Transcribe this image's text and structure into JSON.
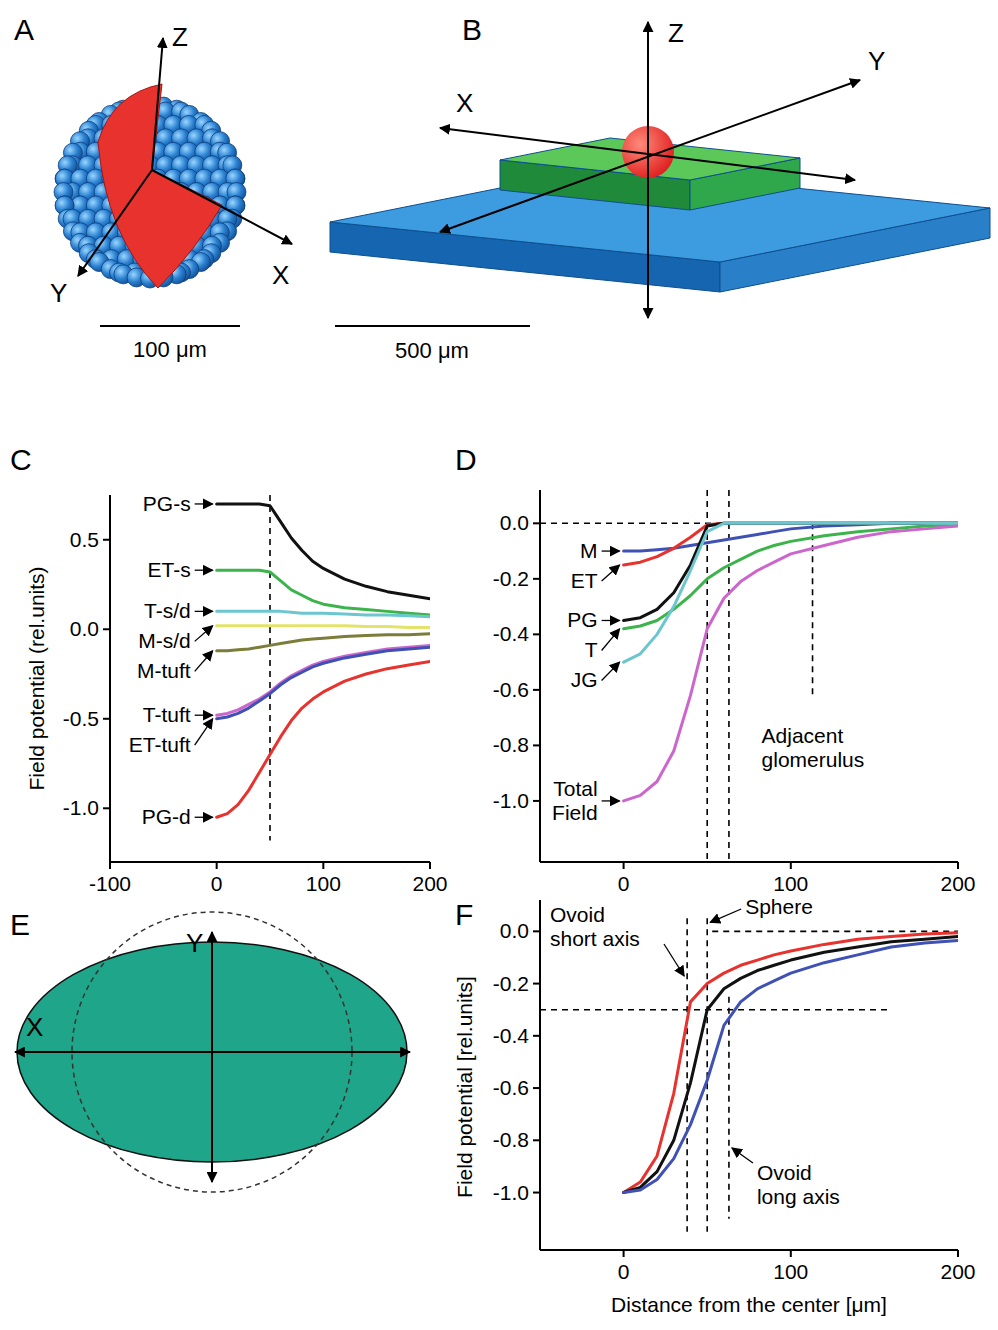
{
  "chart_data": [
    {
      "panel_label": "C",
      "type": "line",
      "y_label": "Field potential (rel.units)",
      "x": [
        0,
        10,
        20,
        30,
        40,
        50,
        60,
        70,
        80,
        90,
        100,
        120,
        140,
        160,
        180,
        200
      ],
      "xlim": [
        -100,
        200
      ],
      "xticks": [
        -100,
        0,
        100,
        200
      ],
      "ylim": [
        -1.3,
        0.75
      ],
      "yticks": [
        {
          "value": -1,
          "label": "-1.0"
        },
        -0.5,
        {
          "value": 0,
          "label": "0.0"
        },
        0.5
      ],
      "vlines": [
        {
          "x": 50,
          "y_from": -1.18,
          "y_to": 0.75
        }
      ],
      "series": [
        {
          "name": "PG-s",
          "color": "#111111",
          "values": [
            0.7,
            0.7,
            0.7,
            0.7,
            0.7,
            0.69,
            0.6,
            0.51,
            0.44,
            0.38,
            0.34,
            0.28,
            0.24,
            0.21,
            0.19,
            0.17
          ]
        },
        {
          "name": "ET-s",
          "color": "#3cb44b",
          "values": [
            0.33,
            0.33,
            0.33,
            0.33,
            0.33,
            0.32,
            0.27,
            0.22,
            0.19,
            0.16,
            0.14,
            0.12,
            0.11,
            0.1,
            0.09,
            0.08
          ]
        },
        {
          "name": "T-s/d",
          "color": "#6cc6d0",
          "values": [
            0.1,
            0.1,
            0.1,
            0.1,
            0.1,
            0.1,
            0.1,
            0.095,
            0.09,
            0.09,
            0.09,
            0.085,
            0.08,
            0.08,
            0.075,
            0.07
          ]
        },
        {
          "name": "M-s/d",
          "color": "#e3e36a",
          "values": [
            0.02,
            0.02,
            0.02,
            0.02,
            0.02,
            0.02,
            0.02,
            0.02,
            0.02,
            0.02,
            0.02,
            0.02,
            0.015,
            0.015,
            0.01,
            0.01
          ]
        },
        {
          "name": "M-tuft",
          "color": "#7d7d3a",
          "values": [
            -0.12,
            -0.12,
            -0.115,
            -0.11,
            -0.1,
            -0.09,
            -0.08,
            -0.07,
            -0.06,
            -0.055,
            -0.05,
            -0.04,
            -0.035,
            -0.03,
            -0.03,
            -0.025
          ]
        },
        {
          "name": "T-tuft",
          "color": "#cc66cc",
          "values": [
            -0.48,
            -0.47,
            -0.45,
            -0.42,
            -0.39,
            -0.35,
            -0.3,
            -0.26,
            -0.23,
            -0.2,
            -0.18,
            -0.15,
            -0.13,
            -0.11,
            -0.1,
            -0.09
          ]
        },
        {
          "name": "ET-tuft",
          "color": "#3f51b5",
          "values": [
            -0.5,
            -0.49,
            -0.47,
            -0.44,
            -0.4,
            -0.36,
            -0.31,
            -0.27,
            -0.24,
            -0.21,
            -0.19,
            -0.16,
            -0.14,
            -0.12,
            -0.11,
            -0.1
          ]
        },
        {
          "name": "PG-d",
          "color": "#e8322d",
          "values": [
            -1.05,
            -1.03,
            -0.98,
            -0.9,
            -0.8,
            -0.7,
            -0.6,
            -0.51,
            -0.44,
            -0.39,
            -0.35,
            -0.29,
            -0.25,
            -0.22,
            -0.2,
            -0.18
          ]
        }
      ]
    },
    {
      "panel_label": "D",
      "type": "line",
      "x": [
        0,
        10,
        20,
        30,
        40,
        50,
        60,
        70,
        80,
        90,
        100,
        120,
        140,
        160,
        180,
        200
      ],
      "xlim": [
        -50,
        200
      ],
      "xticks": [
        0,
        100,
        200
      ],
      "ylim": [
        -1.22,
        0.12
      ],
      "yticks": [
        {
          "value": -1,
          "label": "-1.0"
        },
        -0.8,
        -0.6,
        -0.4,
        -0.2,
        {
          "value": 0,
          "label": "0.0"
        }
      ],
      "annotations": [
        "Adjacent glomerulus"
      ],
      "hlines": [
        {
          "y": 0,
          "x_from": -50,
          "x_to": 200
        }
      ],
      "vlines": [
        {
          "x": 50,
          "y_from": -1.22,
          "y_to": 0.12
        },
        {
          "x": 63,
          "y_from": -1.22,
          "y_to": 0.12
        },
        {
          "x": 113,
          "y_from": -0.62,
          "y_to": 0
        }
      ],
      "series": [
        {
          "name": "M",
          "color": "#3f51b5",
          "values": [
            -0.1,
            -0.1,
            -0.095,
            -0.09,
            -0.08,
            -0.07,
            -0.06,
            -0.05,
            -0.04,
            -0.03,
            -0.02,
            -0.01,
            -0.005,
            0,
            0,
            0
          ]
        },
        {
          "name": "ET",
          "color": "#e8322d",
          "values": [
            -0.15,
            -0.14,
            -0.12,
            -0.09,
            -0.05,
            -0.005,
            0,
            0,
            0,
            0,
            0,
            0,
            0,
            0,
            0,
            0
          ]
        },
        {
          "name": "PG",
          "color": "#111111",
          "values": [
            -0.35,
            -0.34,
            -0.31,
            -0.25,
            -0.15,
            -0.01,
            0,
            0,
            0,
            0,
            0,
            0,
            0,
            0,
            0,
            0
          ]
        },
        {
          "name": "T",
          "color": "#3cb44b",
          "values": [
            -0.38,
            -0.37,
            -0.35,
            -0.31,
            -0.26,
            -0.2,
            -0.16,
            -0.13,
            -0.1,
            -0.08,
            -0.065,
            -0.045,
            -0.03,
            -0.02,
            -0.01,
            -0.005
          ]
        },
        {
          "name": "JG",
          "color": "#6cc6d0",
          "values": [
            -0.5,
            -0.47,
            -0.4,
            -0.3,
            -0.17,
            -0.03,
            0,
            0,
            0,
            0,
            0,
            0,
            0,
            0,
            0,
            0
          ]
        },
        {
          "name": "Total Field",
          "color": "#cc66cc",
          "values": [
            -1.0,
            -0.98,
            -0.93,
            -0.82,
            -0.62,
            -0.38,
            -0.27,
            -0.21,
            -0.17,
            -0.14,
            -0.11,
            -0.08,
            -0.05,
            -0.03,
            -0.02,
            -0.01
          ]
        }
      ]
    },
    {
      "panel_label": "F",
      "type": "line",
      "x_label": "Distance from the center [μm]",
      "y_label": "Field potential [rel.units]",
      "x": [
        0,
        10,
        20,
        30,
        40,
        50,
        60,
        70,
        80,
        90,
        100,
        120,
        140,
        160,
        180,
        200
      ],
      "xlim": [
        -50,
        200
      ],
      "xticks": [
        0,
        100,
        200
      ],
      "ylim": [
        -1.22,
        0.12
      ],
      "yticks": [
        {
          "value": -1,
          "label": "-1.0"
        },
        -0.8,
        -0.6,
        -0.4,
        -0.2,
        {
          "value": 0,
          "label": "0.0"
        }
      ],
      "hlines": [
        {
          "y": -0.3,
          "x_from": -50,
          "x_to": 160
        },
        {
          "y": 0,
          "x_from": 53,
          "x_to": 200
        }
      ],
      "vlines": [
        {
          "x": 38,
          "y_from": -1.15,
          "y_to": 0.05
        },
        {
          "x": 50,
          "y_from": -1.15,
          "y_to": 0.05
        },
        {
          "x": 63,
          "y_from": -1.1,
          "y_to": -0.25
        }
      ],
      "series": [
        {
          "name": "Ovoid short axis",
          "color": "#e8322d",
          "values": [
            -1.0,
            -0.96,
            -0.86,
            -0.62,
            -0.27,
            -0.2,
            -0.16,
            -0.13,
            -0.11,
            -0.09,
            -0.075,
            -0.05,
            -0.03,
            -0.02,
            -0.01,
            -0.005
          ]
        },
        {
          "name": "Sphere",
          "color": "#111111",
          "values": [
            -1.0,
            -0.98,
            -0.92,
            -0.8,
            -0.58,
            -0.3,
            -0.22,
            -0.18,
            -0.15,
            -0.13,
            -0.11,
            -0.08,
            -0.06,
            -0.04,
            -0.03,
            -0.02
          ]
        },
        {
          "name": "Ovoid long axis",
          "color": "#3f51b5",
          "values": [
            -1.0,
            -0.99,
            -0.95,
            -0.87,
            -0.74,
            -0.57,
            -0.36,
            -0.27,
            -0.22,
            -0.19,
            -0.16,
            -0.12,
            -0.09,
            -0.06,
            -0.045,
            -0.035
          ]
        }
      ]
    }
  ],
  "diagrams": {
    "A": {
      "panel_label": "A",
      "axis_labels": {
        "x": "X",
        "y": "Y",
        "z": "Z"
      },
      "scale_bar": "100 μm"
    },
    "B": {
      "panel_label": "B",
      "axis_labels": {
        "x": "X",
        "y": "Y",
        "z": "Z"
      },
      "scale_bar": "500 μm"
    },
    "E": {
      "panel_label": "E",
      "axis_labels": {
        "x": "X",
        "y": "Y"
      }
    }
  }
}
